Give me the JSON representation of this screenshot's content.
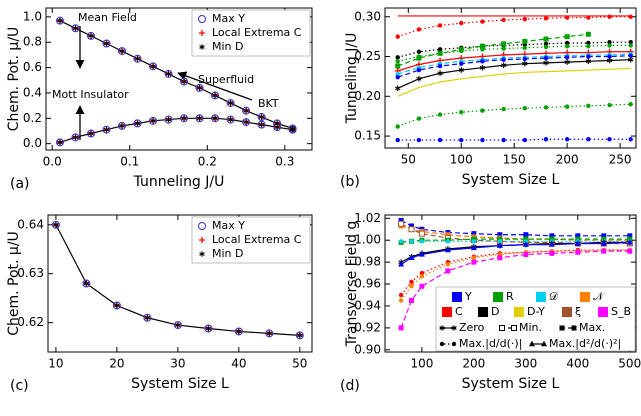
{
  "chart_data": [
    {
      "type": "line",
      "label": "(a)",
      "xlabel": "Tunneling J/U",
      "ylabel": "Chem. Pot. μ/U",
      "xlim": [
        -0.008,
        0.335
      ],
      "ylim": [
        -0.05,
        1.07
      ],
      "xticks": [
        {
          "value": 0,
          "label": "0.0"
        },
        0.1,
        0.2,
        0.3
      ],
      "yticks": [
        {
          "value": 0,
          "label": "0.0"
        },
        0.2,
        0.4,
        0.6,
        0.8,
        {
          "value": 1,
          "label": "1.0"
        }
      ],
      "legend": "upper right",
      "annotations": [
        "Mean Field",
        "Superfluid",
        "Mott Insulator",
        "BKT"
      ],
      "x": [
        0.01,
        0.03,
        0.05,
        0.07,
        0.09,
        0.11,
        0.13,
        0.15,
        0.17,
        0.19,
        0.21,
        0.23,
        0.25,
        0.27,
        0.29,
        0.31,
        0.31,
        0.29,
        0.27,
        0.25,
        0.23,
        0.21,
        0.19,
        0.17,
        0.15,
        0.13,
        0.11,
        0.09,
        0.07,
        0.05,
        0.03,
        0.01
      ],
      "series": [
        {
          "name": "Max Y",
          "color": "#3333cc",
          "marker": "circle-open",
          "line": "solid",
          "line_color": "#000000",
          "values": [
            0.97,
            0.91,
            0.85,
            0.79,
            0.73,
            0.67,
            0.61,
            0.55,
            0.49,
            0.44,
            0.38,
            0.32,
            0.26,
            0.21,
            0.16,
            0.12,
            0.11,
            0.13,
            0.15,
            0.17,
            0.19,
            0.2,
            0.2,
            0.2,
            0.19,
            0.18,
            0.16,
            0.14,
            0.11,
            0.08,
            0.05,
            0.01
          ]
        },
        {
          "name": "Local Extrema C",
          "color": "#ff0000",
          "marker": "plus",
          "line": "none",
          "values": [
            0.97,
            0.91,
            0.85,
            0.79,
            0.73,
            0.67,
            0.61,
            0.55,
            0.49,
            0.44,
            0.38,
            0.32,
            0.26,
            0.21,
            0.16,
            0.12,
            0.11,
            0.13,
            0.15,
            0.17,
            0.19,
            0.2,
            0.2,
            0.2,
            0.19,
            0.18,
            0.16,
            0.14,
            0.11,
            0.08,
            0.05,
            0.01
          ]
        },
        {
          "name": "Min D",
          "color": "#000000",
          "marker": "star",
          "line": "none",
          "values": [
            0.97,
            0.91,
            0.85,
            0.79,
            0.73,
            0.67,
            0.61,
            0.55,
            0.49,
            0.44,
            0.38,
            0.32,
            0.26,
            0.21,
            0.16,
            0.12,
            0.11,
            0.13,
            0.15,
            0.17,
            0.19,
            0.2,
            0.2,
            0.2,
            0.19,
            0.18,
            0.16,
            0.14,
            0.11,
            0.08,
            0.05,
            0.01
          ]
        }
      ]
    },
    {
      "type": "line",
      "label": "(b)",
      "xlabel": "System Size L",
      "ylabel": "Tunneling J/U",
      "xlim": [
        28,
        265
      ],
      "ylim": [
        0.135,
        0.311
      ],
      "xticks": [
        50,
        100,
        150,
        200,
        250
      ],
      "yticks": [
        0.15,
        {
          "value": 0.2,
          "label": "0.20"
        },
        0.25,
        {
          "value": 0.3,
          "label": "0.30"
        }
      ],
      "x": [
        40,
        60,
        80,
        100,
        120,
        140,
        160,
        180,
        200,
        220,
        240,
        260
      ],
      "series": [
        {
          "color": "#ff0000",
          "line": "solid",
          "marker": "none",
          "values": [
            0.301,
            0.301,
            0.301,
            0.301,
            0.301,
            0.301,
            0.301,
            0.301,
            0.301,
            0.301,
            0.301,
            0.301
          ]
        },
        {
          "color": "#ff0000",
          "line": "dotted",
          "marker": "dot",
          "values": [
            0.275,
            0.284,
            0.289,
            0.292,
            0.294,
            0.296,
            0.297,
            0.298,
            0.299,
            0.299,
            0.3,
            0.3
          ]
        },
        {
          "color": "#000000",
          "line": "dotted",
          "marker": "dot",
          "values": [
            0.249,
            0.256,
            0.259,
            0.261,
            0.263,
            0.264,
            0.265,
            0.266,
            0.267,
            0.267,
            0.268,
            0.268
          ]
        },
        {
          "color": "#00a000",
          "line": "dashed",
          "marker": "square",
          "values": [
            0.238,
            0.248,
            0.254,
            0.259,
            0.263,
            0.266,
            0.269,
            0.272,
            0.275,
            0.278,
            null,
            null
          ]
        },
        {
          "color": "#00a000",
          "line": "dotted",
          "marker": "dot",
          "values": [
            0.244,
            0.25,
            0.254,
            0.257,
            0.259,
            0.26,
            0.261,
            0.262,
            0.263,
            0.263,
            0.264,
            0.264
          ]
        },
        {
          "color": "#ff0000",
          "line": "solid",
          "marker": "plus",
          "values": [
            0.232,
            0.24,
            0.245,
            0.248,
            0.25,
            0.252,
            0.253,
            0.254,
            0.255,
            0.255,
            0.256,
            0.256
          ]
        },
        {
          "color": "#00d0f0",
          "line": "dashed",
          "marker": "dot",
          "values": [
            0.228,
            0.236,
            0.241,
            0.244,
            0.246,
            0.248,
            0.249,
            0.25,
            0.251,
            0.252,
            0.252,
            0.253
          ]
        },
        {
          "color": "#0000ff",
          "line": "dashed",
          "marker": "dot",
          "values": [
            0.224,
            0.233,
            0.238,
            0.241,
            0.244,
            0.246,
            0.247,
            0.248,
            0.249,
            0.25,
            0.25,
            0.251
          ]
        },
        {
          "color": "#000000",
          "line": "solid",
          "marker": "star",
          "values": [
            0.21,
            0.222,
            0.229,
            0.233,
            0.236,
            0.239,
            0.241,
            0.242,
            0.243,
            0.244,
            0.245,
            0.246
          ]
        },
        {
          "color": "#e0d000",
          "line": "solid",
          "marker": "none",
          "values": [
            0.2,
            0.211,
            0.218,
            0.222,
            0.225,
            0.228,
            0.23,
            0.231,
            0.232,
            0.233,
            0.234,
            0.235
          ]
        },
        {
          "color": "#00a000",
          "line": "dotted",
          "marker": "dot",
          "values": [
            0.162,
            0.172,
            0.177,
            0.18,
            0.182,
            0.184,
            0.185,
            0.186,
            0.187,
            0.188,
            0.189,
            0.19
          ]
        },
        {
          "color": "#0000ff",
          "line": "dotted",
          "marker": "dot",
          "values": [
            0.145,
            0.145,
            0.145,
            0.145,
            0.145,
            0.145,
            0.145,
            0.146,
            0.146,
            0.146,
            0.146,
            0.146
          ]
        }
      ]
    },
    {
      "type": "line",
      "label": "(c)",
      "xlabel": "System Size L",
      "ylabel": "Chem. Pot. μ/U",
      "xlim": [
        8.7,
        52
      ],
      "ylim": [
        0.614,
        0.642
      ],
      "xticks": [
        10,
        20,
        30,
        40,
        50
      ],
      "yticks": [
        0.62,
        0.63,
        0.64
      ],
      "legend": "upper right",
      "x": [
        10,
        15,
        20,
        25,
        30,
        35,
        40,
        45,
        50
      ],
      "series": [
        {
          "name": "Max Y",
          "color": "#3333cc",
          "marker": "circle-open",
          "line": "solid",
          "line_color": "#000000",
          "values": [
            0.64,
            0.628,
            0.6235,
            0.621,
            0.6195,
            0.6188,
            0.6182,
            0.6178,
            0.6174
          ]
        },
        {
          "name": "Local Extrema C",
          "color": "#ff0000",
          "marker": "plus",
          "line": "none",
          "values": [
            0.64,
            0.628,
            0.6235,
            0.621,
            0.6195,
            0.6188,
            0.6182,
            0.6178,
            0.6174
          ]
        },
        {
          "name": "Min D",
          "color": "#000000",
          "marker": "star",
          "line": "none",
          "values": [
            0.64,
            0.628,
            0.6235,
            0.621,
            0.6195,
            0.6188,
            0.6182,
            0.6178,
            0.6174
          ]
        }
      ]
    },
    {
      "type": "line",
      "label": "(d)",
      "xlabel": "System Size L",
      "ylabel": "Transverse Field g",
      "xlim": [
        29,
        512
      ],
      "ylim": [
        0.898,
        1.023
      ],
      "xticks": [
        100,
        200,
        300,
        400,
        500
      ],
      "yticks": [
        {
          "value": 0.9,
          "label": "0.90"
        },
        0.92,
        0.94,
        0.96,
        0.98,
        {
          "value": 1,
          "label": "1.00"
        },
        1.02
      ],
      "x": [
        60,
        80,
        100,
        150,
        200,
        250,
        300,
        350,
        400,
        450,
        500
      ],
      "series": [
        {
          "color": "#0000ff",
          "line": "dashed",
          "marker": "square",
          "values": [
            1.018,
            1.013,
            1.01,
            1.007,
            1.006,
            1.005,
            1.005,
            1.004,
            1.004,
            1.004,
            1.004
          ]
        },
        {
          "color": "#ff8000",
          "line": "dashed",
          "marker": "square",
          "values": [
            1.013,
            1.01,
            1.008,
            1.005,
            1.003,
            1.002,
            1.001,
            1.001,
            1.0,
            1.0,
            1.0
          ]
        },
        {
          "color": "#a0522d",
          "line": "dashed",
          "marker": "square-open",
          "values": [
            1.015,
            1.01,
            1.006,
            1.002,
            1.0,
            0.999,
            0.998,
            0.998,
            0.997,
            0.997,
            0.997
          ]
        },
        {
          "color": "#00a000",
          "line": "dashed",
          "marker": "square",
          "values": [
            0.998,
            0.999,
            1.0,
            1.0,
            1.001,
            1.001,
            1.001,
            1.001,
            1.001,
            1.001,
            1.001
          ]
        },
        {
          "color": "#00d0f0",
          "line": "dotted",
          "marker": "dot",
          "values": [
            0.999,
            0.999,
            0.999,
            0.999,
            0.999,
            0.999,
            0.999,
            0.999,
            0.999,
            0.999,
            0.999
          ]
        },
        {
          "color": "#000000",
          "line": "solid",
          "marker": "star",
          "values": [
            0.98,
            0.985,
            0.988,
            0.992,
            0.994,
            0.995,
            0.996,
            0.997,
            0.997,
            0.998,
            0.998
          ]
        },
        {
          "color": "#0000ff",
          "line": "solid",
          "marker": "triangle",
          "values": [
            0.978,
            0.984,
            0.987,
            0.991,
            0.993,
            0.995,
            0.996,
            0.996,
            0.997,
            0.997,
            0.998
          ]
        },
        {
          "color": "#ff0000",
          "line": "dotted",
          "marker": "dot",
          "values": [
            0.95,
            0.962,
            0.97,
            0.98,
            0.985,
            0.988,
            0.989,
            0.99,
            0.991,
            0.991,
            0.991
          ]
        },
        {
          "color": "#ff8000",
          "line": "dotted",
          "marker": "dot",
          "values": [
            0.945,
            0.958,
            0.967,
            0.978,
            0.984,
            0.987,
            0.989,
            0.99,
            0.99,
            0.991,
            0.991
          ]
        },
        {
          "color": "#ff00ff",
          "line": "dashed",
          "marker": "square",
          "values": [
            0.92,
            0.945,
            0.958,
            0.972,
            0.98,
            0.984,
            0.987,
            0.988,
            0.989,
            0.99,
            0.99
          ]
        }
      ],
      "legend_colors": [
        {
          "name": "Y",
          "color": "#0000ff"
        },
        {
          "name": "R",
          "color": "#00a000"
        },
        {
          "name": "𝒟",
          "color": "#00d0f0"
        },
        {
          "name": "𝒩",
          "color": "#ff8000"
        },
        {
          "name": "C",
          "color": "#ff0000"
        },
        {
          "name": "D",
          "color": "#000000"
        },
        {
          "name": "D-Y",
          "color": "#e0d000"
        },
        {
          "name": "ξ",
          "color": "#a0522d"
        },
        {
          "name": "S_B",
          "color": "#ff00ff"
        }
      ],
      "legend_styles": [
        {
          "name": "Zero",
          "line": "solid",
          "marker": "star"
        },
        {
          "name": "Min.",
          "line": "dashed",
          "marker": "square-open"
        },
        {
          "name": "Max.",
          "line": "dashed",
          "marker": "square"
        },
        {
          "name": "Max.|d/d(·)|",
          "line": "dotted",
          "marker": "dot"
        },
        {
          "name": "Max.|d²/d(·)²|",
          "line": "solid",
          "marker": "triangle"
        }
      ]
    }
  ]
}
